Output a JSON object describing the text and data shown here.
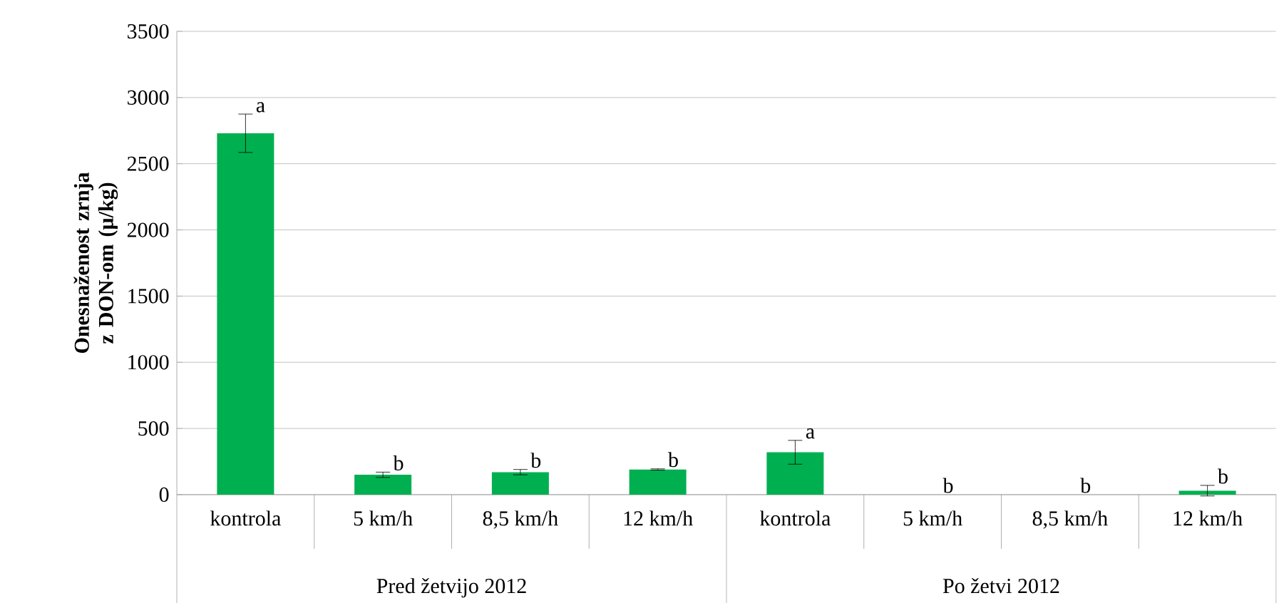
{
  "chart_data": {
    "type": "bar",
    "ylabel": "Onesnaženost zrnja z DON-om (µ/kg)",
    "categories": [
      "kontrola",
      "5 km/h",
      "8,5 km/h",
      "12 km/h",
      "kontrola",
      "5 km/h",
      "8,5 km/h",
      "12 km/h"
    ],
    "annotations": [
      "Pred žetvijo 2012",
      "Po žetvi 2012"
    ],
    "series": [
      {
        "color": "#00b050",
        "values": [
          2730,
          150,
          170,
          190,
          320,
          0,
          0,
          30
        ],
        "errors": [
          145,
          20,
          20,
          5,
          90,
          null,
          null,
          40
        ],
        "value_labels": [
          "a",
          "b",
          "b",
          "b",
          "a",
          "b",
          "b",
          "b"
        ]
      }
    ],
    "ylim": [
      0,
      3500
    ],
    "yticks": [
      0,
      500,
      1000,
      1500,
      2000,
      2500,
      3000,
      3500
    ],
    "grid": "y"
  }
}
